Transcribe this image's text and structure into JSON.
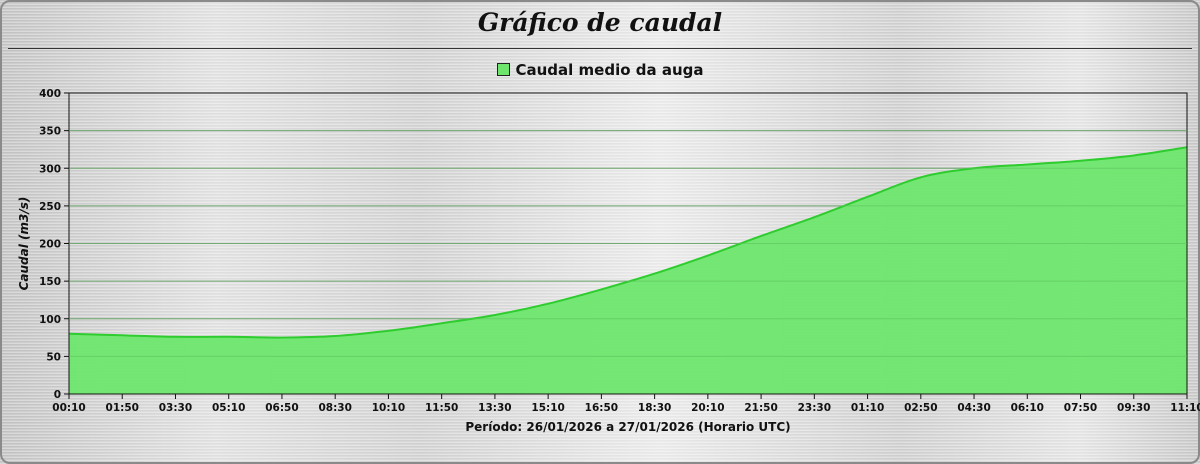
{
  "chart_data": {
    "type": "area",
    "title": "Gráfico de caudal",
    "ylabel": "Caudal (m3/s)",
    "xlabel": "Período: 26/01/2026 a 27/01/2026 (Horario UTC)",
    "legend": {
      "position": "top-center",
      "entries": [
        "Caudal medio da auga"
      ]
    },
    "ylim": [
      0,
      400
    ],
    "yticks": [
      0,
      50,
      100,
      150,
      200,
      250,
      300,
      350,
      400
    ],
    "grid": true,
    "colors": {
      "fill": "#6ee66e",
      "line": "#2ecc2e"
    },
    "x": [
      "00:10",
      "01:50",
      "03:30",
      "05:10",
      "06:50",
      "08:30",
      "10:10",
      "11:50",
      "13:30",
      "15:10",
      "16:50",
      "18:30",
      "20:10",
      "21:50",
      "23:30",
      "01:10",
      "02:50",
      "04:30",
      "06:10",
      "07:50",
      "09:30",
      "11:10"
    ],
    "series": [
      {
        "name": "Caudal medio da auga",
        "values": [
          80,
          78,
          76,
          76,
          75,
          77,
          84,
          94,
          105,
          120,
          139,
          160,
          184,
          210,
          235,
          262,
          288,
          300,
          305,
          310,
          317,
          328
        ]
      }
    ]
  }
}
